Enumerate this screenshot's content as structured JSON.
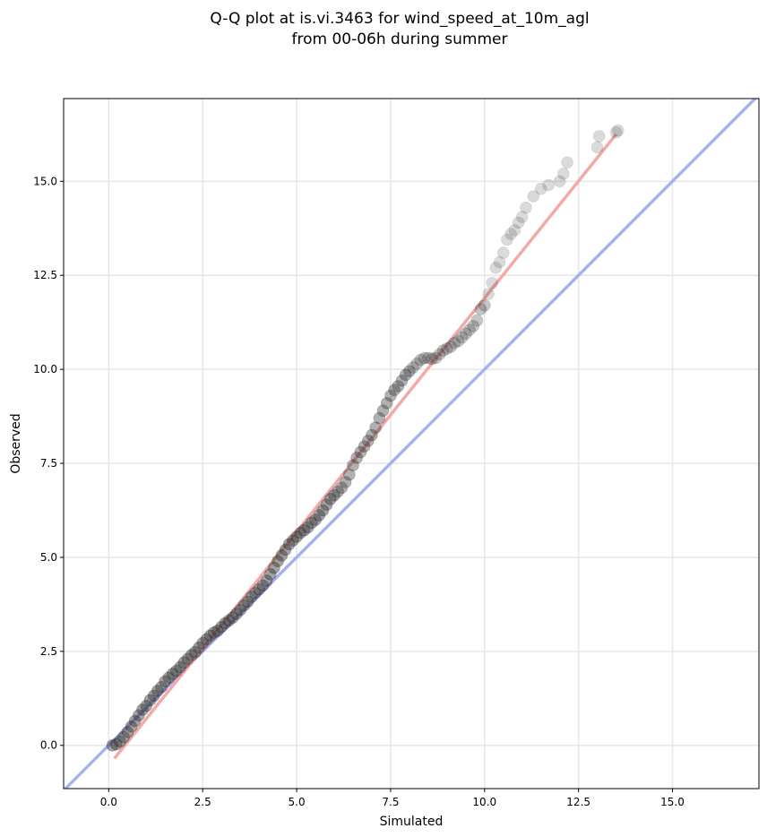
{
  "chart_data": {
    "type": "scatter",
    "title_lines": [
      "Q-Q plot at is.vi.3463 for wind_speed_at_10m_agl",
      "from 00-06h during summer"
    ],
    "xlabel": "Simulated",
    "ylabel": "Observed",
    "xlim": [
      -1.2,
      17.3
    ],
    "ylim": [
      -1.15,
      17.2
    ],
    "xticks": [
      "0.0",
      "2.5",
      "5.0",
      "7.5",
      "10.0",
      "12.5",
      "15.0"
    ],
    "yticks": [
      "0.0",
      "2.5",
      "5.0",
      "7.5",
      "10.0",
      "12.5",
      "15.0"
    ],
    "grid": true,
    "points": {
      "x": [
        0.1,
        0.2,
        0.3,
        0.4,
        0.5,
        0.6,
        0.7,
        0.8,
        0.9,
        1.0,
        1.1,
        1.2,
        1.3,
        1.4,
        1.5,
        1.6,
        1.7,
        1.8,
        1.9,
        2.0,
        2.1,
        2.2,
        2.3,
        2.4,
        2.5,
        2.6,
        2.7,
        2.8,
        2.9,
        3.0,
        3.1,
        3.2,
        3.3,
        3.4,
        3.5,
        3.6,
        3.7,
        3.8,
        3.9,
        4.0,
        4.1,
        4.2,
        4.3,
        4.4,
        4.5,
        4.6,
        4.7,
        4.8,
        4.9,
        5.0,
        5.1,
        5.2,
        5.3,
        5.4,
        5.5,
        5.6,
        5.7,
        5.8,
        5.9,
        6.0,
        6.1,
        6.2,
        6.3,
        6.4,
        6.5,
        6.6,
        6.7,
        6.8,
        6.9,
        7.0,
        7.1,
        7.2,
        7.3,
        7.4,
        7.5,
        7.6,
        7.7,
        7.8,
        7.9,
        8.0,
        8.1,
        8.2,
        8.3,
        8.4,
        8.5,
        8.6,
        8.7,
        8.8,
        8.9,
        9.0,
        9.1,
        9.2,
        9.3,
        9.4,
        9.5,
        9.6,
        9.7,
        9.8,
        9.9,
        10.0,
        10.1,
        10.2,
        10.3,
        10.4,
        10.5,
        10.6,
        10.7,
        10.8,
        10.9,
        11.0,
        11.1,
        11.3,
        11.5,
        11.7,
        12.0,
        12.1,
        12.2,
        13.0,
        13.05,
        13.5,
        13.55
      ],
      "y": [
        0.0,
        0.03,
        0.1,
        0.22,
        0.35,
        0.5,
        0.65,
        0.8,
        0.95,
        1.05,
        1.2,
        1.32,
        1.45,
        1.55,
        1.7,
        1.8,
        1.9,
        1.98,
        2.08,
        2.2,
        2.3,
        2.4,
        2.48,
        2.6,
        2.72,
        2.82,
        2.92,
        3.0,
        3.05,
        3.15,
        3.25,
        3.32,
        3.4,
        3.5,
        3.6,
        3.72,
        3.82,
        3.95,
        4.05,
        4.15,
        4.25,
        4.38,
        4.55,
        4.72,
        4.9,
        5.05,
        5.2,
        5.35,
        5.45,
        5.55,
        5.65,
        5.72,
        5.8,
        5.92,
        6.0,
        6.12,
        6.25,
        6.4,
        6.55,
        6.65,
        6.75,
        6.85,
        7.0,
        7.2,
        7.45,
        7.65,
        7.8,
        7.95,
        8.1,
        8.25,
        8.45,
        8.7,
        8.9,
        9.1,
        9.3,
        9.45,
        9.55,
        9.7,
        9.85,
        9.95,
        10.05,
        10.15,
        10.25,
        10.3,
        10.3,
        10.28,
        10.3,
        10.4,
        10.5,
        10.55,
        10.6,
        10.7,
        10.75,
        10.85,
        10.95,
        11.05,
        11.15,
        11.3,
        11.6,
        11.7,
        12.0,
        12.3,
        12.7,
        12.85,
        13.1,
        13.45,
        13.6,
        13.7,
        13.9,
        14.05,
        14.3,
        14.6,
        14.8,
        14.9,
        15.0,
        15.2,
        15.5,
        15.9,
        16.2,
        16.3,
        16.35
      ]
    },
    "reference_line": {
      "color": "#aab0f4",
      "label": ""
    },
    "fit_line": {
      "color": "#f4a9a9",
      "x": [
        0.15,
        13.5
      ],
      "y": [
        -0.35,
        16.25
      ]
    }
  }
}
